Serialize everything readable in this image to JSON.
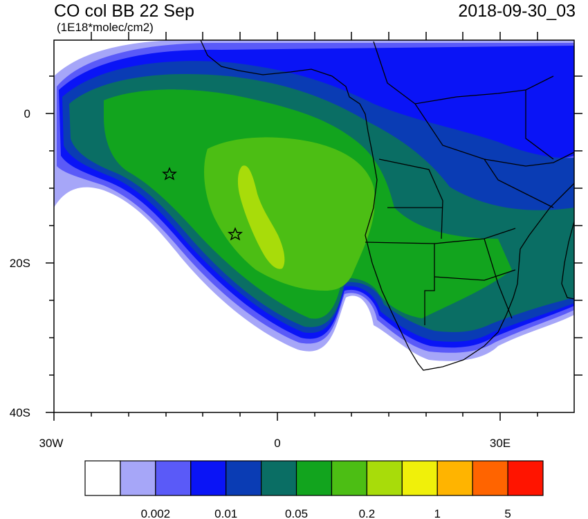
{
  "header": {
    "title": "CO col BB 22 Sep",
    "units": "(1E18*molec/cm2)",
    "valid_time": "2018-09-30_03"
  },
  "map": {
    "lat_labels": [
      "0",
      "20S",
      "40S"
    ],
    "lon_labels": [
      "30W",
      "0",
      "30E"
    ],
    "markers": [
      {
        "name": "star-marker",
        "lon": -14.5,
        "lat": -8
      },
      {
        "name": "star-marker",
        "lon": -5.7,
        "lat": -16
      }
    ],
    "colors": {
      "background": "#ffffff",
      "coast": "#000000"
    }
  },
  "colorbar": {
    "colors": [
      "#ffffff",
      "#a6a6f8",
      "#5a5af8",
      "#0a14f6",
      "#0a3cb4",
      "#0a6e64",
      "#12a41e",
      "#4cbe14",
      "#a8dc0a",
      "#f0f00a",
      "#ffb400",
      "#ff6400",
      "#ff1400"
    ],
    "tick_labels": [
      "0.002",
      "0.01",
      "0.05",
      "0.2",
      "1",
      "5"
    ]
  }
}
